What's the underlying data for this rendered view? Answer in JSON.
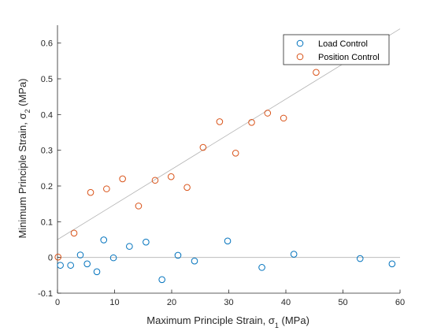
{
  "chart_data": {
    "type": "scatter",
    "xlabel": "Maximum Principle Strain, σ₁ (MPa)",
    "xlabel_parts": {
      "main": "Maximum Principle Strain, σ",
      "sub": "1",
      "unit": " (MPa)"
    },
    "ylabel": "Minimum Principle Strain, σ₂ (MPa)",
    "ylabel_parts": {
      "main": "Minimum Principle Strain, σ",
      "sub": "2",
      "unit": " (MPa)"
    },
    "xlim": [
      0,
      60
    ],
    "ylim": [
      -0.1,
      0.65
    ],
    "xticks": [
      0,
      10,
      20,
      30,
      40,
      50,
      60
    ],
    "xtick_labels": [
      "0",
      "10",
      "20",
      "30",
      "40",
      "50",
      "60"
    ],
    "yticks": [
      -0.1,
      0,
      0.1,
      0.2,
      0.3,
      0.4,
      0.5,
      0.6
    ],
    "ytick_labels": [
      "-0.1",
      "0",
      "0.1",
      "0.2",
      "0.3",
      "0.4",
      "0.5",
      "0.6"
    ],
    "grid": false,
    "legend_position": "top-right",
    "series": [
      {
        "name": "Load Control",
        "color": "#0072BD",
        "marker": "circle-open",
        "x": [
          0.5,
          2.3,
          4.0,
          5.2,
          6.9,
          8.1,
          9.8,
          12.6,
          15.5,
          18.3,
          21.1,
          24.0,
          29.8,
          35.8,
          41.4,
          53.0,
          58.6
        ],
        "y": [
          -0.022,
          -0.022,
          0.007,
          -0.018,
          -0.04,
          0.049,
          -0.001,
          0.031,
          0.043,
          -0.062,
          0.006,
          -0.01,
          0.046,
          -0.028,
          0.009,
          -0.003,
          -0.018
        ]
      },
      {
        "name": "Position Control",
        "color": "#D95319",
        "marker": "circle-open",
        "x": [
          0.1,
          2.9,
          5.8,
          8.6,
          11.4,
          14.2,
          17.1,
          19.9,
          22.7,
          25.5,
          28.4,
          31.2,
          34.0,
          36.8,
          39.6,
          45.3
        ],
        "y": [
          0.001,
          0.068,
          0.182,
          0.192,
          0.22,
          0.144,
          0.216,
          0.226,
          0.196,
          0.308,
          0.38,
          0.292,
          0.378,
          0.404,
          0.39,
          0.518
        ]
      }
    ],
    "reference_lines": [
      {
        "color": "#b3b3b3",
        "x": [
          0,
          60
        ],
        "y": [
          0.05,
          0.64
        ]
      },
      {
        "color": "#b3b3b3",
        "x": [
          0,
          60
        ],
        "y": [
          0,
          0
        ]
      }
    ]
  }
}
